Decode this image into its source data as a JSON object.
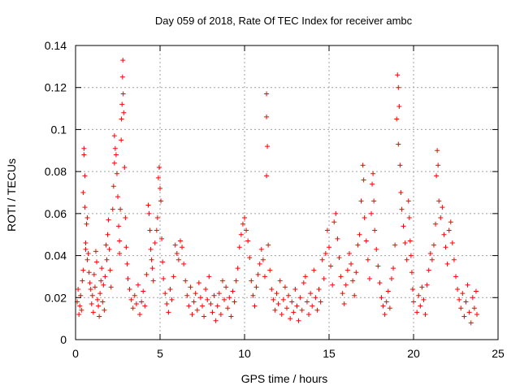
{
  "chart_data": {
    "type": "scatter",
    "title": "Day 059 of 2018, Rate Of TEC Index for receiver ambc",
    "xlabel": "GPS time / hours",
    "ylabel": "ROTI / TECUs",
    "xlim": [
      0,
      25
    ],
    "ylim": [
      0,
      0.14
    ],
    "x_ticks": [
      0,
      5,
      10,
      15,
      20,
      25
    ],
    "x_tick_labels": [
      "0",
      "5",
      "10",
      "15",
      "20",
      "25"
    ],
    "y_ticks": [
      0,
      0.02,
      0.04,
      0.06,
      0.08,
      0.1,
      0.12,
      0.14
    ],
    "y_tick_labels": [
      "0",
      "0.02",
      "0.04",
      "0.06",
      "0.08",
      "0.1",
      "0.12",
      "0.14"
    ],
    "grid": true,
    "marker": "+",
    "series": [
      {
        "name": "ROTI",
        "color": "#ff0000",
        "points": [
          [
            0.1,
            0.018
          ],
          [
            0.15,
            0.024
          ],
          [
            0.2,
            0.012
          ],
          [
            0.25,
            0.016
          ],
          [
            0.3,
            0.021
          ],
          [
            0.35,
            0.014
          ],
          [
            0.4,
            0.028
          ],
          [
            0.45,
            0.033
          ],
          [
            0.45,
            0.07
          ],
          [
            0.5,
            0.091
          ],
          [
            0.5,
            0.088
          ],
          [
            0.55,
            0.078
          ],
          [
            0.55,
            0.063
          ],
          [
            0.6,
            0.046
          ],
          [
            0.6,
            0.043
          ],
          [
            0.65,
            0.055
          ],
          [
            0.7,
            0.038
          ],
          [
            0.7,
            0.058
          ],
          [
            0.75,
            0.041
          ],
          [
            0.8,
            0.032
          ],
          [
            0.85,
            0.027
          ],
          [
            0.9,
            0.024
          ],
          [
            0.95,
            0.017
          ],
          [
            1.0,
            0.021
          ],
          [
            1.05,
            0.013
          ],
          [
            1.1,
            0.031
          ],
          [
            1.15,
            0.025
          ],
          [
            1.2,
            0.042
          ],
          [
            1.25,
            0.037
          ],
          [
            1.3,
            0.019
          ],
          [
            1.35,
            0.016
          ],
          [
            1.4,
            0.011
          ],
          [
            1.45,
            0.022
          ],
          [
            1.5,
            0.028
          ],
          [
            1.55,
            0.034
          ],
          [
            1.6,
            0.018
          ],
          [
            1.65,
            0.026
          ],
          [
            1.7,
            0.014
          ],
          [
            1.75,
            0.03
          ],
          [
            1.8,
            0.045
          ],
          [
            1.85,
            0.038
          ],
          [
            1.9,
            0.05
          ],
          [
            1.95,
            0.057
          ],
          [
            2.0,
            0.043
          ],
          [
            2.05,
            0.033
          ],
          [
            2.1,
            0.025
          ],
          [
            2.2,
            0.062
          ],
          [
            2.25,
            0.073
          ],
          [
            2.3,
            0.084
          ],
          [
            2.3,
            0.097
          ],
          [
            2.35,
            0.091
          ],
          [
            2.4,
            0.088
          ],
          [
            2.45,
            0.079
          ],
          [
            2.5,
            0.068
          ],
          [
            2.55,
            0.054
          ],
          [
            2.6,
            0.047
          ],
          [
            2.6,
            0.041
          ],
          [
            2.65,
            0.062
          ],
          [
            2.7,
            0.095
          ],
          [
            2.72,
            0.105
          ],
          [
            2.75,
            0.112
          ],
          [
            2.78,
            0.125
          ],
          [
            2.8,
            0.133
          ],
          [
            2.82,
            0.117
          ],
          [
            2.85,
            0.108
          ],
          [
            2.9,
            0.082
          ],
          [
            2.95,
            0.058
          ],
          [
            3.0,
            0.044
          ],
          [
            3.05,
            0.036
          ],
          [
            3.1,
            0.029
          ],
          [
            3.2,
            0.024
          ],
          [
            3.3,
            0.019
          ],
          [
            3.4,
            0.015
          ],
          [
            3.5,
            0.021
          ],
          [
            3.6,
            0.017
          ],
          [
            3.7,
            0.026
          ],
          [
            3.8,
            0.012
          ],
          [
            3.9,
            0.018
          ],
          [
            4.0,
            0.023
          ],
          [
            4.1,
            0.016
          ],
          [
            4.2,
            0.031
          ],
          [
            4.3,
            0.064
          ],
          [
            4.35,
            0.06
          ],
          [
            4.4,
            0.052
          ],
          [
            4.45,
            0.043
          ],
          [
            4.5,
            0.038
          ],
          [
            4.55,
            0.034
          ],
          [
            4.6,
            0.028
          ],
          [
            4.7,
            0.046
          ],
          [
            4.8,
            0.052
          ],
          [
            4.85,
            0.058
          ],
          [
            4.9,
            0.077
          ],
          [
            4.95,
            0.082
          ],
          [
            5.0,
            0.072
          ],
          [
            5.05,
            0.066
          ],
          [
            5.1,
            0.048
          ],
          [
            5.15,
            0.037
          ],
          [
            5.2,
            0.029
          ],
          [
            5.3,
            0.022
          ],
          [
            5.4,
            0.017
          ],
          [
            5.5,
            0.013
          ],
          [
            5.6,
            0.024
          ],
          [
            5.7,
            0.019
          ],
          [
            5.8,
            0.03
          ],
          [
            5.9,
            0.045
          ],
          [
            6.0,
            0.041
          ],
          [
            6.1,
            0.038
          ],
          [
            6.2,
            0.047
          ],
          [
            6.3,
            0.044
          ],
          [
            6.4,
            0.036
          ],
          [
            6.5,
            0.028
          ],
          [
            6.6,
            0.021
          ],
          [
            6.7,
            0.016
          ],
          [
            6.8,
            0.025
          ],
          [
            6.9,
            0.012
          ],
          [
            7.0,
            0.018
          ],
          [
            7.1,
            0.022
          ],
          [
            7.2,
            0.014
          ],
          [
            7.3,
            0.027
          ],
          [
            7.4,
            0.02
          ],
          [
            7.5,
            0.016
          ],
          [
            7.6,
            0.011
          ],
          [
            7.7,
            0.024
          ],
          [
            7.8,
            0.019
          ],
          [
            7.9,
            0.03
          ],
          [
            8.0,
            0.017
          ],
          [
            8.1,
            0.013
          ],
          [
            8.2,
            0.021
          ],
          [
            8.3,
            0.009
          ],
          [
            8.4,
            0.016
          ],
          [
            8.5,
            0.022
          ],
          [
            8.6,
            0.012
          ],
          [
            8.7,
            0.028
          ],
          [
            8.8,
            0.019
          ],
          [
            8.9,
            0.025
          ],
          [
            9.0,
            0.015
          ],
          [
            9.1,
            0.02
          ],
          [
            9.2,
            0.011
          ],
          [
            9.3,
            0.023
          ],
          [
            9.4,
            0.018
          ],
          [
            9.5,
            0.028
          ],
          [
            9.6,
            0.034
          ],
          [
            9.7,
            0.044
          ],
          [
            9.8,
            0.05
          ],
          [
            9.9,
            0.055
          ],
          [
            10.0,
            0.058
          ],
          [
            10.1,
            0.052
          ],
          [
            10.2,
            0.047
          ],
          [
            10.3,
            0.039
          ],
          [
            10.4,
            0.028
          ],
          [
            10.5,
            0.021
          ],
          [
            10.6,
            0.016
          ],
          [
            10.7,
            0.025
          ],
          [
            10.8,
            0.031
          ],
          [
            10.9,
            0.036
          ],
          [
            11.0,
            0.043
          ],
          [
            11.1,
            0.038
          ],
          [
            11.2,
            0.03
          ],
          [
            11.3,
            0.117
          ],
          [
            11.3,
            0.106
          ],
          [
            11.35,
            0.092
          ],
          [
            11.3,
            0.078
          ],
          [
            11.4,
            0.045
          ],
          [
            11.5,
            0.033
          ],
          [
            11.6,
            0.024
          ],
          [
            11.7,
            0.019
          ],
          [
            11.8,
            0.014
          ],
          [
            11.9,
            0.022
          ],
          [
            12.0,
            0.017
          ],
          [
            12.1,
            0.028
          ],
          [
            12.2,
            0.012
          ],
          [
            12.3,
            0.019
          ],
          [
            12.4,
            0.025
          ],
          [
            12.5,
            0.015
          ],
          [
            12.6,
            0.021
          ],
          [
            12.7,
            0.01
          ],
          [
            12.8,
            0.018
          ],
          [
            12.9,
            0.013
          ],
          [
            13.0,
            0.024
          ],
          [
            13.1,
            0.016
          ],
          [
            13.2,
            0.009
          ],
          [
            13.3,
            0.02
          ],
          [
            13.4,
            0.014
          ],
          [
            13.5,
            0.027
          ],
          [
            13.6,
            0.03
          ],
          [
            13.7,
            0.018
          ],
          [
            13.8,
            0.012
          ],
          [
            13.9,
            0.022
          ],
          [
            14.0,
            0.016
          ],
          [
            14.1,
            0.033
          ],
          [
            14.2,
            0.02
          ],
          [
            14.3,
            0.014
          ],
          [
            14.4,
            0.024
          ],
          [
            14.5,
            0.018
          ],
          [
            14.6,
            0.038
          ],
          [
            14.7,
            0.029
          ],
          [
            14.8,
            0.041
          ],
          [
            14.9,
            0.052
          ],
          [
            15.0,
            0.044
          ],
          [
            15.1,
            0.035
          ],
          [
            15.2,
            0.026
          ],
          [
            15.3,
            0.056
          ],
          [
            15.4,
            0.06
          ],
          [
            15.5,
            0.048
          ],
          [
            15.6,
            0.039
          ],
          [
            15.7,
            0.03
          ],
          [
            15.8,
            0.022
          ],
          [
            15.9,
            0.017
          ],
          [
            16.0,
            0.026
          ],
          [
            16.1,
            0.033
          ],
          [
            16.2,
            0.041
          ],
          [
            16.3,
            0.036
          ],
          [
            16.4,
            0.028
          ],
          [
            16.5,
            0.021
          ],
          [
            16.6,
            0.032
          ],
          [
            16.7,
            0.045
          ],
          [
            16.8,
            0.05
          ],
          [
            16.9,
            0.066
          ],
          [
            17.0,
            0.083
          ],
          [
            17.05,
            0.076
          ],
          [
            17.1,
            0.058
          ],
          [
            17.2,
            0.047
          ],
          [
            17.3,
            0.038
          ],
          [
            17.4,
            0.029
          ],
          [
            17.5,
            0.06
          ],
          [
            17.55,
            0.074
          ],
          [
            17.6,
            0.079
          ],
          [
            17.65,
            0.066
          ],
          [
            17.7,
            0.052
          ],
          [
            17.8,
            0.043
          ],
          [
            17.9,
            0.035
          ],
          [
            18.0,
            0.027
          ],
          [
            18.1,
            0.02
          ],
          [
            18.2,
            0.016
          ],
          [
            18.3,
            0.012
          ],
          [
            18.4,
            0.018
          ],
          [
            18.5,
            0.023
          ],
          [
            18.6,
            0.015
          ],
          [
            18.7,
            0.029
          ],
          [
            18.8,
            0.034
          ],
          [
            18.9,
            0.045
          ],
          [
            19.0,
            0.105
          ],
          [
            19.05,
            0.126
          ],
          [
            19.1,
            0.12
          ],
          [
            19.15,
            0.111
          ],
          [
            19.1,
            0.093
          ],
          [
            19.2,
            0.083
          ],
          [
            19.25,
            0.07
          ],
          [
            19.3,
            0.062
          ],
          [
            19.4,
            0.054
          ],
          [
            19.5,
            0.046
          ],
          [
            19.6,
            0.038
          ],
          [
            19.7,
            0.066
          ],
          [
            19.75,
            0.058
          ],
          [
            19.8,
            0.047
          ],
          [
            19.85,
            0.04
          ],
          [
            19.9,
            0.032
          ],
          [
            19.95,
            0.024
          ],
          [
            20.0,
            0.018
          ],
          [
            20.2,
            0.013
          ],
          [
            20.3,
            0.021
          ],
          [
            20.4,
            0.016
          ],
          [
            20.5,
            0.025
          ],
          [
            20.6,
            0.019
          ],
          [
            20.7,
            0.012
          ],
          [
            20.8,
            0.026
          ],
          [
            20.9,
            0.033
          ],
          [
            21.0,
            0.041
          ],
          [
            21.1,
            0.038
          ],
          [
            21.2,
            0.045
          ],
          [
            21.3,
            0.055
          ],
          [
            21.35,
            0.078
          ],
          [
            21.4,
            0.09
          ],
          [
            21.45,
            0.083
          ],
          [
            21.5,
            0.066
          ],
          [
            21.6,
            0.058
          ],
          [
            21.7,
            0.063
          ],
          [
            21.8,
            0.05
          ],
          [
            21.9,
            0.044
          ],
          [
            22.0,
            0.036
          ],
          [
            22.1,
            0.052
          ],
          [
            22.2,
            0.056
          ],
          [
            22.3,
            0.046
          ],
          [
            22.4,
            0.038
          ],
          [
            22.5,
            0.03
          ],
          [
            22.6,
            0.024
          ],
          [
            22.7,
            0.019
          ],
          [
            22.8,
            0.015
          ],
          [
            22.9,
            0.022
          ],
          [
            23.0,
            0.011
          ],
          [
            23.1,
            0.018
          ],
          [
            23.2,
            0.026
          ],
          [
            23.3,
            0.013
          ],
          [
            23.4,
            0.008
          ],
          [
            23.5,
            0.02
          ],
          [
            23.6,
            0.015
          ],
          [
            23.7,
            0.023
          ],
          [
            23.75,
            0.012
          ]
        ]
      }
    ]
  }
}
